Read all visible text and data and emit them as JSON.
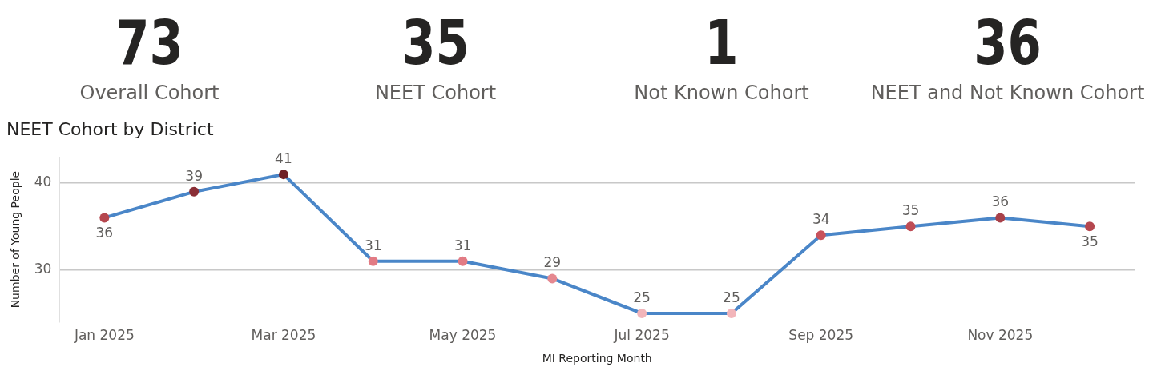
{
  "chart_data": [
    {
      "type": "other",
      "categories": [
        "Overall Cohort",
        "NEET Cohort",
        "Not Known Cohort",
        "NEET and Not Known Cohort"
      ],
      "values": [
        73,
        35,
        1,
        36
      ],
      "data_labels": true
    },
    {
      "type": "line",
      "title": "NEET Cohort by District",
      "xlabel": "MI Reporting Month",
      "ylabel": "Number of Young People",
      "categories": [
        "Jan 2025",
        null,
        "Mar 2025",
        null,
        "May 2025",
        null,
        "Jul 2025",
        null,
        "Sep 2025",
        null,
        "Nov 2025",
        null
      ],
      "series": [
        {
          "color": "#4a86c8",
          "values": [
            36,
            39,
            41,
            31,
            31,
            29,
            25,
            25,
            34,
            35,
            36,
            35
          ],
          "colors": [
            "#b5474f",
            "#8a2e36",
            "#6e1f27",
            "#e27b84",
            "#e27b84",
            "#e58890",
            "#f2b5ba",
            "#f2b5ba",
            "#c8525c",
            "#bf4d56",
            "#a8414a",
            "#b5474f"
          ]
        }
      ],
      "ylim": [
        24,
        43
      ],
      "yticks": [
        30,
        40
      ],
      "grid": "y",
      "marker": "circle",
      "line_style": "solid",
      "data_labels": true,
      "legend": false
    }
  ]
}
